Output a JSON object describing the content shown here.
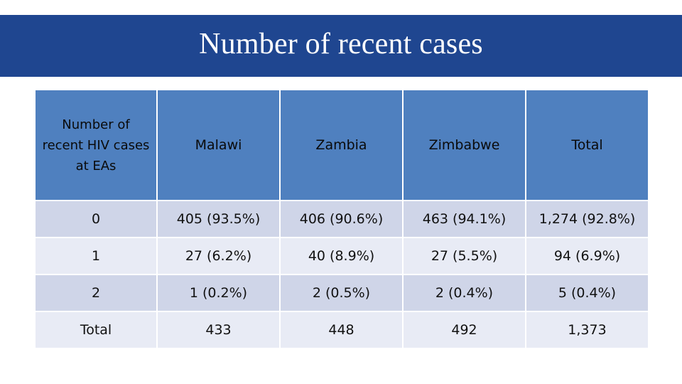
{
  "title": "Number of recent cases",
  "table": {
    "header": {
      "first_line1": "Number of",
      "first_line2": "recent HIV cases",
      "first_line3": "at EAs",
      "columns": [
        "Malawi",
        "Zambia",
        "Zimbabwe",
        "Total"
      ]
    },
    "rows": [
      {
        "label": "0",
        "cells": [
          "405 (93.5%)",
          "406 (90.6%)",
          "463 (94.1%)",
          "1,274 (92.8%)"
        ]
      },
      {
        "label": "1",
        "cells": [
          "27 (6.2%)",
          "40 (8.9%)",
          "27 (5.5%)",
          "94 (6.9%)"
        ]
      },
      {
        "label": "2",
        "cells": [
          "1 (0.2%)",
          "2 (0.5%)",
          "2 (0.4%)",
          "5 (0.4%)"
        ]
      },
      {
        "label": "Total",
        "cells": [
          "433",
          "448",
          "492",
          "1,373"
        ]
      }
    ]
  },
  "colors": {
    "title_bar": "#1f4690",
    "header": "#4f80bf",
    "row_dark": "#cfd5e8",
    "row_light": "#e8ebf5"
  }
}
